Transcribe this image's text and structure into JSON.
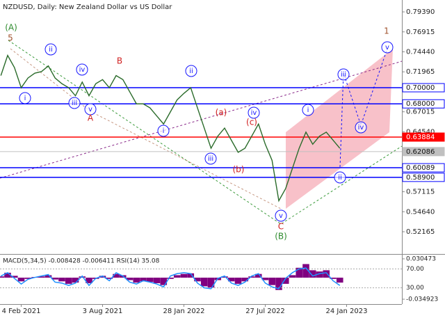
{
  "chart_data": [
    {
      "type": "line",
      "title": "NZDUSD, Daily:  New Zealand Dollar vs US Dollar",
      "color": "#2a6b2a",
      "categories": [
        null,
        null,
        null,
        "4 Feb 2021",
        null,
        null,
        null,
        null,
        null,
        null,
        null,
        null,
        null,
        null,
        null,
        "3 Aug 2021",
        null,
        null,
        null,
        null,
        null,
        null,
        null,
        null,
        null,
        null,
        null,
        "28 Jan 2022",
        null,
        null,
        null,
        null,
        null,
        null,
        null,
        null,
        null,
        null,
        null,
        "27 Jul 2022",
        null,
        null,
        null,
        null,
        null,
        null,
        null,
        null,
        null,
        null,
        null,
        "24 Jan 2023",
        null,
        null,
        null,
        null,
        null,
        null,
        null
      ],
      "values": [
        0.715,
        0.74,
        0.725,
        0.7,
        0.712,
        0.718,
        0.72,
        0.727,
        0.712,
        0.705,
        0.7,
        0.69,
        0.707,
        0.69,
        0.705,
        0.71,
        0.7,
        0.715,
        0.71,
        0.695,
        0.68,
        0.68,
        0.675,
        0.665,
        0.655,
        0.67,
        0.685,
        0.693,
        0.7,
        0.675,
        0.65,
        0.625,
        0.64,
        0.65,
        0.635,
        0.62,
        0.625,
        0.64,
        0.655,
        0.63,
        0.61,
        0.56,
        0.575,
        0.6,
        0.625,
        0.645,
        0.63,
        0.64,
        0.645,
        0.635,
        0.625,
        null,
        null,
        null,
        null,
        null,
        null,
        null,
        null
      ],
      "ylim": [
        0.4941,
        0.8086
      ],
      "yticks": [
        {
          "value": 0.7939,
          "label": "0.79390"
        },
        {
          "value": 0.76915,
          "label": "0.76915"
        },
        {
          "value": 0.7444,
          "label": "0.74440"
        },
        {
          "value": 0.71965,
          "label": "0.71965"
        },
        {
          "value": 0.67015,
          "label": "0.67015"
        },
        {
          "value": 0.6454,
          "label": "0.64540"
        },
        {
          "value": 0.57115,
          "label": "0.57115"
        },
        {
          "value": 0.5464,
          "label": "0.54640"
        },
        {
          "value": 0.52165,
          "label": "0.52165"
        }
      ],
      "levels": [
        {
          "value": 0.7,
          "label": "0.70000",
          "color": "#0000ff"
        },
        {
          "value": 0.68,
          "label": "0.68000",
          "color": "#0000ff"
        },
        {
          "value": 0.63884,
          "label": "0.63884",
          "color": "#ff0000"
        },
        {
          "value": 0.62086,
          "label": "0.62086",
          "color": "#c0c0c0"
        },
        {
          "value": 0.60089,
          "label": "0.60089",
          "color": "#0000ff"
        },
        {
          "value": 0.589,
          "label": "0.58900",
          "color": "#0000ff"
        }
      ],
      "annotations": [
        {
          "text": "(A)",
          "color": "#2e8b2e",
          "circled": false
        },
        {
          "text": "5",
          "color": "#a0522d",
          "circled": false
        },
        {
          "text": "ii",
          "color": "#1414ff",
          "circled": true
        },
        {
          "text": "i",
          "color": "#1414ff",
          "circled": true
        },
        {
          "text": "iii",
          "color": "#1414ff",
          "circled": true
        },
        {
          "text": "iv",
          "color": "#1414ff",
          "circled": true
        },
        {
          "text": "v",
          "color": "#1414ff",
          "circled": true
        },
        {
          "text": "A",
          "color": "#d02020",
          "circled": false
        },
        {
          "text": "B",
          "color": "#d02020",
          "circled": false
        },
        {
          "text": "ii",
          "color": "#1414ff",
          "circled": true
        },
        {
          "text": "i",
          "color": "#1414ff",
          "circled": true
        },
        {
          "text": "iii",
          "color": "#1414ff",
          "circled": true
        },
        {
          "text": "(a)",
          "color": "#d02020",
          "circled": false
        },
        {
          "text": "iv",
          "color": "#1414ff",
          "circled": true
        },
        {
          "text": "(c)",
          "color": "#d02020",
          "circled": false
        },
        {
          "text": "(b)",
          "color": "#d02020",
          "circled": false
        },
        {
          "text": "v",
          "color": "#1414ff",
          "circled": true
        },
        {
          "text": "C",
          "color": "#d02020",
          "circled": false
        },
        {
          "text": "(B)",
          "color": "#2e8b2e",
          "circled": false
        },
        {
          "text": "i",
          "color": "#1414ff",
          "circled": true
        },
        {
          "text": "iii",
          "color": "#1414ff",
          "circled": true
        },
        {
          "text": "iv",
          "color": "#1414ff",
          "circled": true
        },
        {
          "text": "ii",
          "color": "#1414ff",
          "circled": true
        },
        {
          "text": "v",
          "color": "#1414ff",
          "circled": true
        },
        {
          "text": "1",
          "color": "#a0522d",
          "circled": false
        }
      ]
    },
    {
      "type": "bar",
      "title": "MACD(5,34,5) -0.008428 -0.006411 RSI(14) 35.08",
      "color": "#800080",
      "values": [
        0.002,
        0.008,
        0.003,
        -0.006,
        -0.002,
        0.001,
        0.002,
        0.004,
        -0.003,
        -0.006,
        -0.01,
        -0.008,
        0.002,
        -0.009,
        -0.002,
        0.003,
        -0.002,
        0.006,
        0.004,
        -0.004,
        -0.008,
        -0.006,
        -0.007,
        -0.009,
        -0.012,
        -0.002,
        0.004,
        0.006,
        0.007,
        -0.006,
        -0.014,
        -0.016,
        -0.004,
        0.002,
        -0.006,
        -0.01,
        -0.006,
        0.002,
        0.006,
        -0.004,
        -0.012,
        -0.02,
        -0.01,
        0.004,
        0.016,
        0.022,
        0.012,
        0.01,
        0.012,
        -0.002,
        -0.008
      ],
      "ylim": [
        -0.0428,
        0.0372
      ],
      "yticks": [
        0.030473,
        -0.034923
      ],
      "series": [
        {
          "color": "#1e90ff",
          "axis": "y2",
          "values": [
            55,
            62,
            50,
            38,
            48,
            52,
            55,
            58,
            42,
            40,
            35,
            40,
            55,
            35,
            50,
            55,
            45,
            62,
            55,
            42,
            38,
            45,
            42,
            38,
            32,
            55,
            60,
            62,
            60,
            40,
            30,
            28,
            50,
            55,
            40,
            35,
            42,
            55,
            60,
            40,
            32,
            28,
            50,
            62,
            70,
            72,
            55,
            60,
            62,
            45,
            35
          ]
        }
      ],
      "y2lim": [
        -4.4,
        100.1
      ],
      "y2ticks": [
        {
          "value": 70,
          "label": "70.00"
        },
        {
          "value": 30,
          "label": "30.00"
        }
      ]
    }
  ]
}
